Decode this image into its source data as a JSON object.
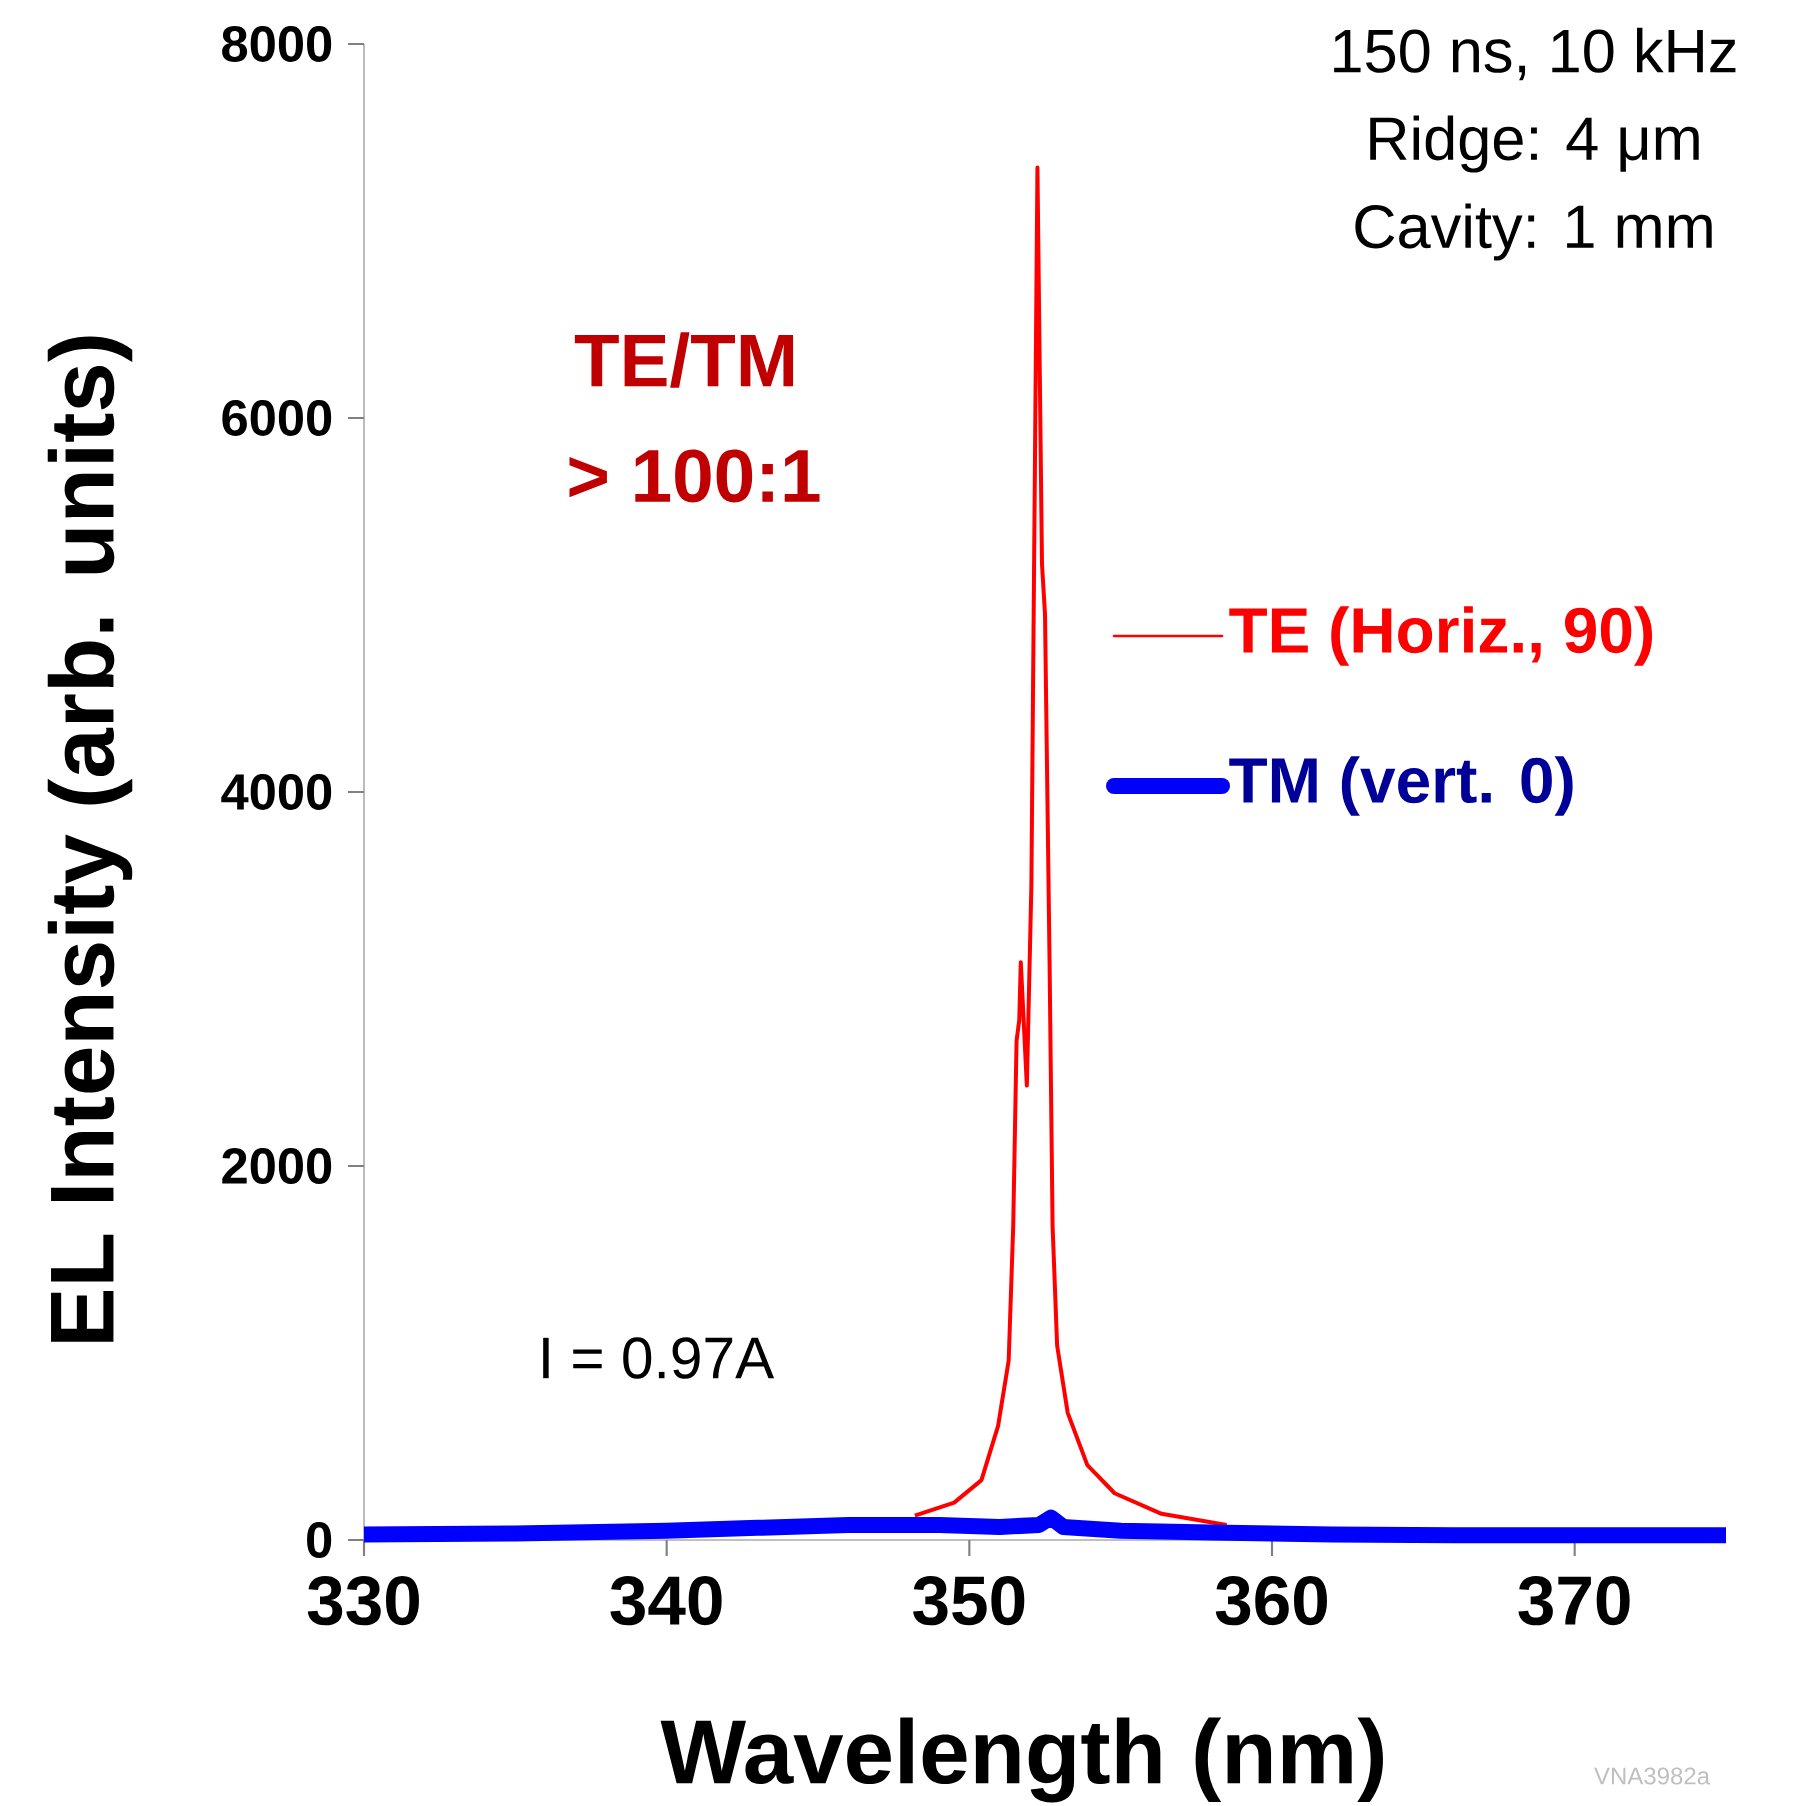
{
  "chart_data": {
    "type": "line",
    "xlabel": "Wavelength (nm)",
    "ylabel": "EL Intensity (arb. units)",
    "xlim": [
      330,
      375
    ],
    "xticks": [
      330,
      340,
      350,
      360,
      370
    ],
    "ylim": [
      0,
      8000
    ],
    "yticks": [
      0,
      2000,
      4000,
      6000,
      8000
    ],
    "legend": "right",
    "grid": false,
    "annotations": [
      "150 ns, 10 kHz",
      "Ridge:  4 μm",
      "Cavity:  1 mm",
      "TE/TM",
      "> 100:1",
      "I = 0.97A",
      "VNA3982a"
    ],
    "series": [
      {
        "name": "TE (Horiz., 90)",
        "color": "#ff0000",
        "x": [
          348.2,
          349.5,
          350.4,
          350.95,
          351.3,
          351.45,
          351.56,
          351.65,
          351.7,
          351.9,
          352.05,
          352.25,
          352.4,
          352.5,
          352.65,
          352.75,
          352.9,
          353.25,
          353.9,
          354.8,
          356.35,
          358.5
        ],
        "values": [
          130,
          200,
          320,
          610,
          960,
          1680,
          2670,
          2780,
          3090,
          2430,
          3500,
          7340,
          5220,
          4950,
          3100,
          1680,
          1040,
          680,
          400,
          250,
          140,
          80
        ]
      },
      {
        "name": "TM (vert. 0)",
        "color": "#0000ff",
        "x": [
          330,
          335,
          340,
          343,
          346,
          349,
          351,
          352.3,
          352.7,
          353.1,
          355,
          358,
          362,
          366,
          370,
          375
        ],
        "values": [
          30,
          35,
          50,
          65,
          80,
          80,
          70,
          80,
          120,
          70,
          50,
          40,
          30,
          25,
          25,
          25
        ]
      }
    ]
  }
}
